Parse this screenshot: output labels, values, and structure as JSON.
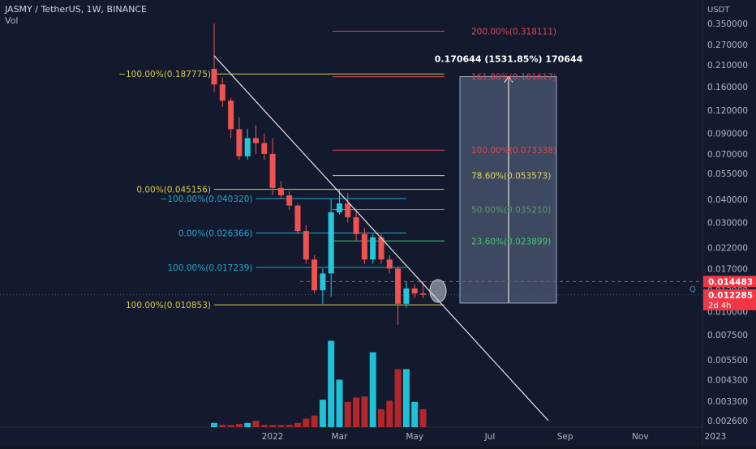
{
  "header": {
    "title": "JASMY / TetherUS, 1W, BINANCE",
    "volume_label": "Vol"
  },
  "chart_data": {
    "type": "candlestick",
    "title": "JASMY / TetherUS, 1W, BINANCE",
    "y_unit_label": "USDT",
    "y_scale": "log",
    "y_ticks": [
      {
        "value": 0.35,
        "label": "0.350000"
      },
      {
        "value": 0.27,
        "label": "0.270000"
      },
      {
        "value": 0.21,
        "label": "0.210000"
      },
      {
        "value": 0.16,
        "label": "0.160000"
      },
      {
        "value": 0.12,
        "label": "0.120000"
      },
      {
        "value": 0.09,
        "label": "0.090000"
      },
      {
        "value": 0.07,
        "label": "0.070000"
      },
      {
        "value": 0.055,
        "label": "0.055000"
      },
      {
        "value": 0.04,
        "label": "0.040000"
      },
      {
        "value": 0.03,
        "label": "0.030000"
      },
      {
        "value": 0.022,
        "label": "0.022000"
      },
      {
        "value": 0.017,
        "label": "0.017000"
      },
      {
        "value": 0.013,
        "label": "0.013000"
      },
      {
        "value": 0.01,
        "label": "0.010000"
      },
      {
        "value": 0.0075,
        "label": "0.007500"
      },
      {
        "value": 0.0055,
        "label": "0.005500"
      },
      {
        "value": 0.0043,
        "label": "0.004300"
      },
      {
        "value": 0.0033,
        "label": "0.003300"
      },
      {
        "value": 0.0026,
        "label": "0.002600"
      }
    ],
    "x_ticks": [
      {
        "week": 7,
        "label": "2022"
      },
      {
        "week": 15,
        "label": "Mar"
      },
      {
        "week": 24,
        "label": "May"
      },
      {
        "week": 33,
        "label": "Jul"
      },
      {
        "week": 42,
        "label": "Sep"
      },
      {
        "week": 51,
        "label": "Nov"
      },
      {
        "week": 60,
        "label": "2023"
      }
    ],
    "candles": [
      {
        "o": 0.2,
        "h": 0.35,
        "l": 0.15,
        "c": 0.165
      },
      {
        "o": 0.165,
        "h": 0.18,
        "l": 0.125,
        "c": 0.135
      },
      {
        "o": 0.135,
        "h": 0.14,
        "l": 0.085,
        "c": 0.095
      },
      {
        "o": 0.095,
        "h": 0.11,
        "l": 0.065,
        "c": 0.068
      },
      {
        "o": 0.068,
        "h": 0.095,
        "l": 0.065,
        "c": 0.085
      },
      {
        "o": 0.085,
        "h": 0.1,
        "l": 0.07,
        "c": 0.08
      },
      {
        "o": 0.08,
        "h": 0.09,
        "l": 0.065,
        "c": 0.07
      },
      {
        "o": 0.07,
        "h": 0.085,
        "l": 0.042,
        "c": 0.046
      },
      {
        "o": 0.046,
        "h": 0.05,
        "l": 0.04,
        "c": 0.042
      },
      {
        "o": 0.042,
        "h": 0.044,
        "l": 0.035,
        "c": 0.037
      },
      {
        "o": 0.037,
        "h": 0.038,
        "l": 0.026,
        "c": 0.027
      },
      {
        "o": 0.027,
        "h": 0.029,
        "l": 0.018,
        "c": 0.019
      },
      {
        "o": 0.019,
        "h": 0.02,
        "l": 0.0125,
        "c": 0.013
      },
      {
        "o": 0.013,
        "h": 0.017,
        "l": 0.011,
        "c": 0.016
      },
      {
        "o": 0.016,
        "h": 0.04,
        "l": 0.012,
        "c": 0.034
      },
      {
        "o": 0.034,
        "h": 0.045,
        "l": 0.033,
        "c": 0.038
      },
      {
        "o": 0.038,
        "h": 0.043,
        "l": 0.03,
        "c": 0.032
      },
      {
        "o": 0.032,
        "h": 0.035,
        "l": 0.024,
        "c": 0.026
      },
      {
        "o": 0.026,
        "h": 0.028,
        "l": 0.018,
        "c": 0.019
      },
      {
        "o": 0.019,
        "h": 0.026,
        "l": 0.018,
        "c": 0.025
      },
      {
        "o": 0.025,
        "h": 0.026,
        "l": 0.018,
        "c": 0.019
      },
      {
        "o": 0.019,
        "h": 0.02,
        "l": 0.016,
        "c": 0.017
      },
      {
        "o": 0.017,
        "h": 0.0175,
        "l": 0.0085,
        "c": 0.011
      },
      {
        "o": 0.011,
        "h": 0.0145,
        "l": 0.0105,
        "c": 0.0133
      },
      {
        "o": 0.0133,
        "h": 0.014,
        "l": 0.0118,
        "c": 0.0125
      },
      {
        "o": 0.0125,
        "h": 0.0145,
        "l": 0.0118,
        "c": 0.01229
      }
    ],
    "volumes": [
      0.04,
      0.02,
      0.02,
      0.03,
      0.04,
      0.06,
      0.02,
      0.02,
      0.02,
      0.02,
      0.04,
      0.08,
      0.11,
      0.26,
      0.82,
      0.45,
      0.24,
      0.28,
      0.29,
      0.71,
      0.17,
      0.25,
      0.55,
      0.55,
      0.24,
      0.17
    ],
    "volume_up": [
      true,
      false,
      false,
      false,
      true,
      false,
      false,
      false,
      false,
      false,
      false,
      false,
      false,
      true,
      true,
      true,
      false,
      false,
      false,
      true,
      false,
      false,
      false,
      true,
      true,
      false
    ],
    "left_fib": [
      {
        "value": 0.187775,
        "label": "−100.00%(0.187775)",
        "color": "#d8c94c",
        "week_start": 0,
        "week_end": 11
      },
      {
        "value": 0.045156,
        "label": "0.00%(0.045156)",
        "color": "#d8c94c",
        "week_start": 0,
        "week_end": 11
      },
      {
        "value": 0.010853,
        "label": "100.00%(0.010853)",
        "color": "#d8c94c",
        "week_start": 0,
        "week_end": 11
      },
      {
        "value": 0.04032,
        "label": "−100.00%(0.040320)",
        "color": "#1fa8c9",
        "week_start": 5,
        "week_end": 23
      },
      {
        "value": 0.026366,
        "label": "0.00%(0.026366)",
        "color": "#1fa8c9",
        "week_start": 5,
        "week_end": 23
      },
      {
        "value": 0.017239,
        "label": "100.00%(0.017239)",
        "color": "#1fa8c9",
        "week_start": 5,
        "week_end": 23
      }
    ],
    "right_fib": [
      {
        "value": 0.318111,
        "label": "200.00%(0.318111)",
        "color": "#d84653"
      },
      {
        "value": 0.181617,
        "label": "161.80%(0.181617)",
        "color": "#d84653"
      },
      {
        "value": 0.073338,
        "label": "100.00%(0.073338)",
        "color": "#d84653"
      },
      {
        "value": 0.053573,
        "label": "78.60%(0.053573)",
        "color": "#e0d75a"
      },
      {
        "value": 0.03521,
        "label": "50.00%(0.035210)",
        "color": "#5a9a6a"
      },
      {
        "value": 0.023899,
        "label": "23.60%(0.023899)",
        "color": "#3ecb6a"
      }
    ],
    "measure": {
      "label": "0.170644 (1531.85%) 170644",
      "from": 0.0111,
      "to": 0.1817
    },
    "trendline": {
      "from": {
        "week": 0,
        "value": 0.235
      },
      "to": {
        "week": 40,
        "value": 0.0026
      }
    },
    "price_labels": [
      {
        "value": 0.014483,
        "label": "0.014483",
        "color": "#f23645"
      },
      {
        "value": 0.012285,
        "label": "0.012285",
        "sub": "2d 4h",
        "color": "#f23645"
      }
    ],
    "colors": {
      "up": "#26c6da",
      "down": "#ef5350",
      "background": "#131a2e",
      "vol_up": "#1ec1d6",
      "vol_down": "#b3272b"
    }
  }
}
